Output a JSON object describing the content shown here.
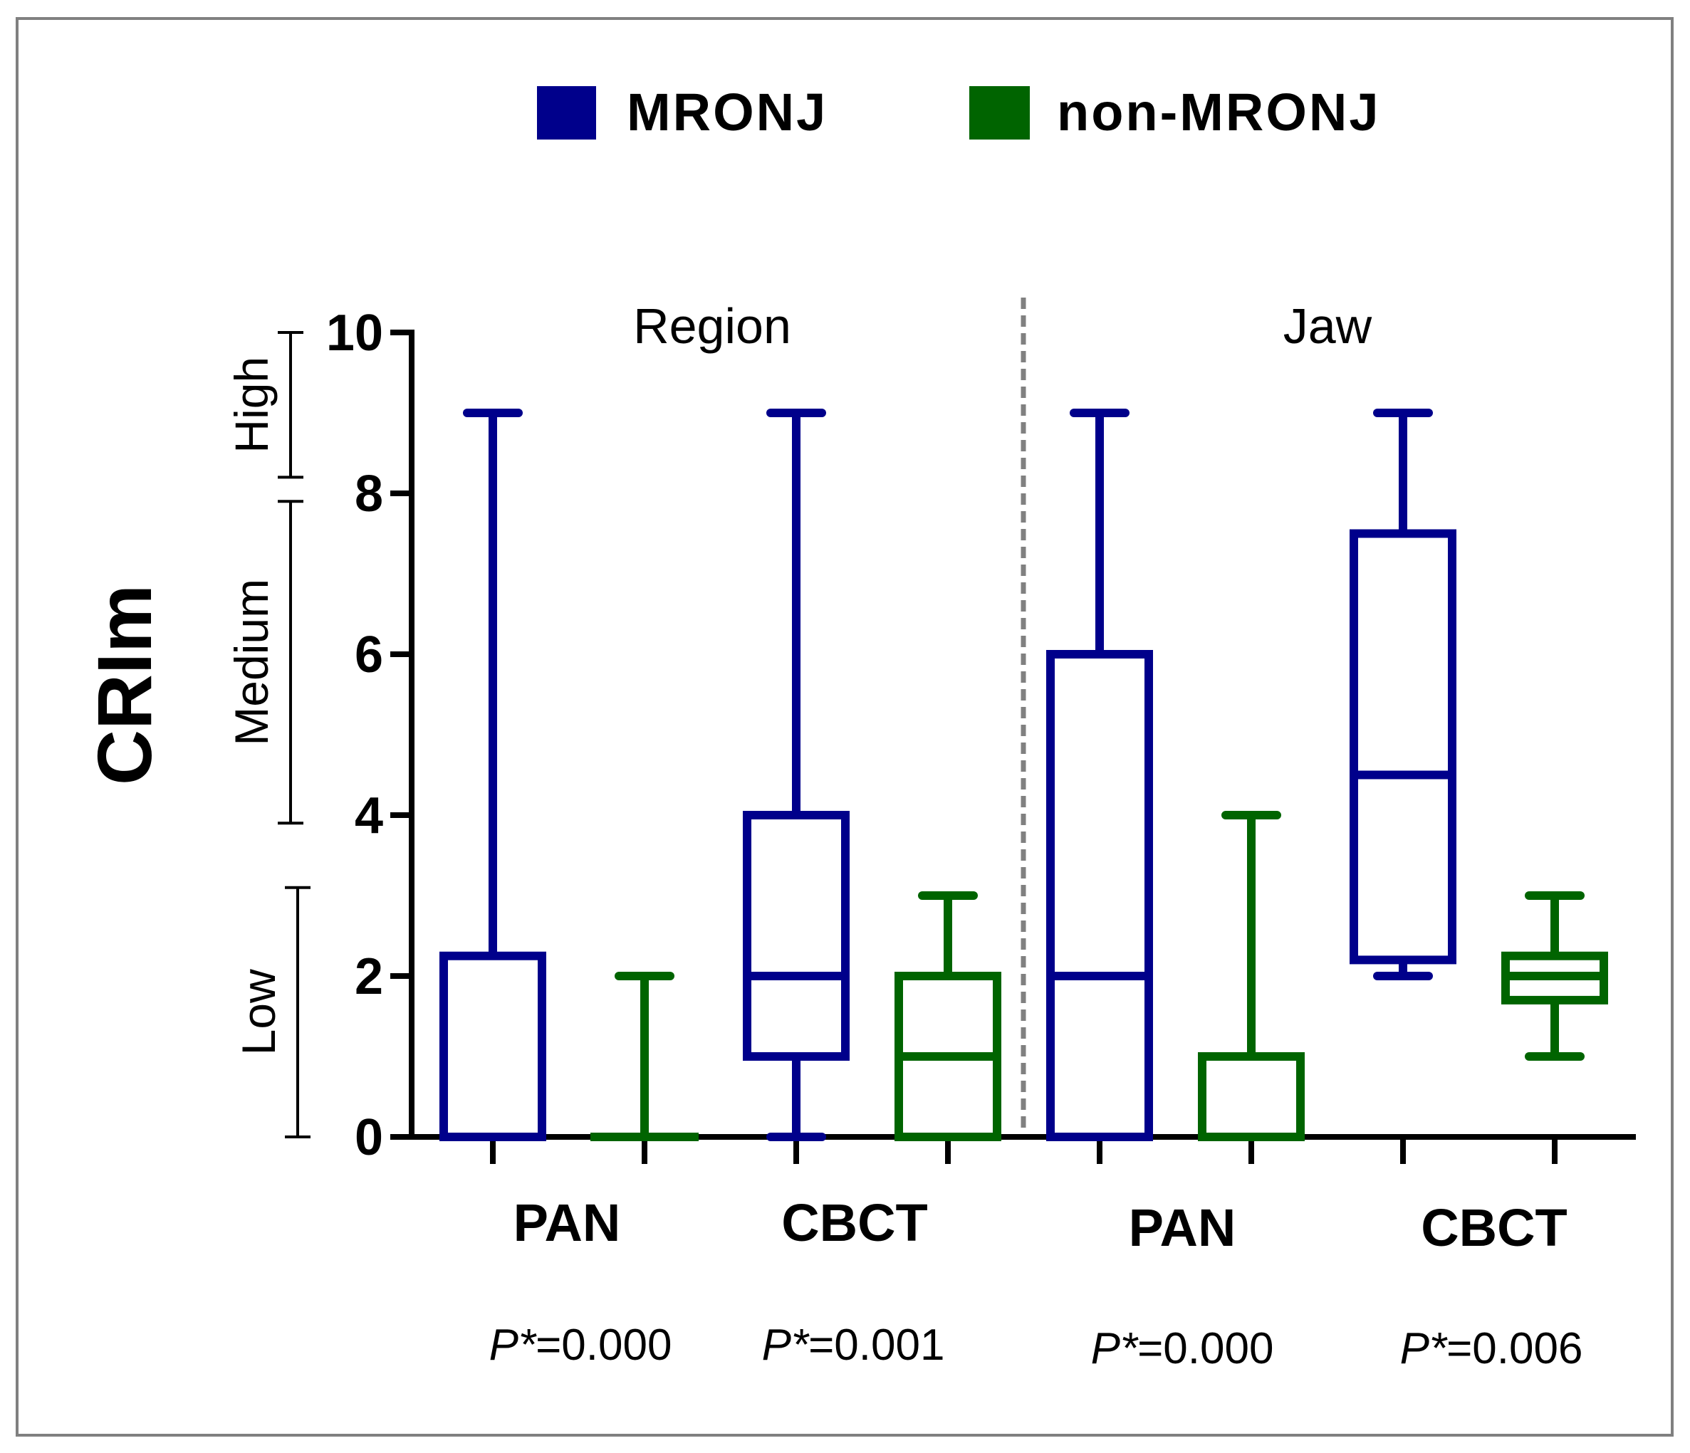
{
  "chart_data": {
    "type": "box",
    "ylabel": "CRIm",
    "ylim": [
      0,
      10
    ],
    "yticks": [
      "0",
      "2",
      "4",
      "6",
      "8",
      "10"
    ],
    "legend": {
      "placement": "top",
      "items": [
        {
          "label": "MRONJ",
          "color": "#00008b"
        },
        {
          "label": "non-MRONJ",
          "color": "#006400"
        }
      ]
    },
    "panels": [
      {
        "title": "Region",
        "categories": [
          "PAN",
          "CBCT"
        ],
        "p_labels": [
          "=0.000",
          "=0.001"
        ]
      },
      {
        "title": "Jaw",
        "categories": [
          "PAN",
          "CBCT"
        ],
        "p_labels": [
          "=0.000",
          "=0.006"
        ]
      }
    ],
    "p_prefix": "P*",
    "risk_bands": [
      {
        "label": "Low",
        "from": 0,
        "to": 3.1
      },
      {
        "label": "Medium",
        "from": 3.9,
        "to": 7.9
      },
      {
        "label": "High",
        "from": 8.2,
        "to": 10
      }
    ],
    "series": [
      {
        "name": "MRONJ",
        "color": "#00008b",
        "boxes": [
          {
            "panel": "Region",
            "category": "PAN",
            "min": 0,
            "q1": 0,
            "median": 0,
            "q3": 2.25,
            "max": 9
          },
          {
            "panel": "Region",
            "category": "CBCT",
            "min": 0,
            "q1": 1,
            "median": 2,
            "q3": 4,
            "max": 9
          },
          {
            "panel": "Jaw",
            "category": "PAN",
            "min": 0,
            "q1": 0,
            "median": 2,
            "q3": 6,
            "max": 9
          },
          {
            "panel": "Jaw",
            "category": "CBCT",
            "min": 2,
            "q1": 2.2,
            "median": 4.5,
            "q3": 7.5,
            "max": 9
          }
        ]
      },
      {
        "name": "non-MRONJ",
        "color": "#006400",
        "boxes": [
          {
            "panel": "Region",
            "category": "PAN",
            "min": 0,
            "q1": 0,
            "median": 0,
            "q3": 0,
            "max": 2
          },
          {
            "panel": "Region",
            "category": "CBCT",
            "min": 0,
            "q1": 0,
            "median": 1,
            "q3": 2,
            "max": 3
          },
          {
            "panel": "Jaw",
            "category": "PAN",
            "min": 0,
            "q1": 0,
            "median": 0,
            "q3": 1,
            "max": 4
          },
          {
            "panel": "Jaw",
            "category": "CBCT",
            "min": 1,
            "q1": 1.7,
            "median": 2,
            "q3": 2.25,
            "max": 3
          }
        ]
      }
    ]
  }
}
